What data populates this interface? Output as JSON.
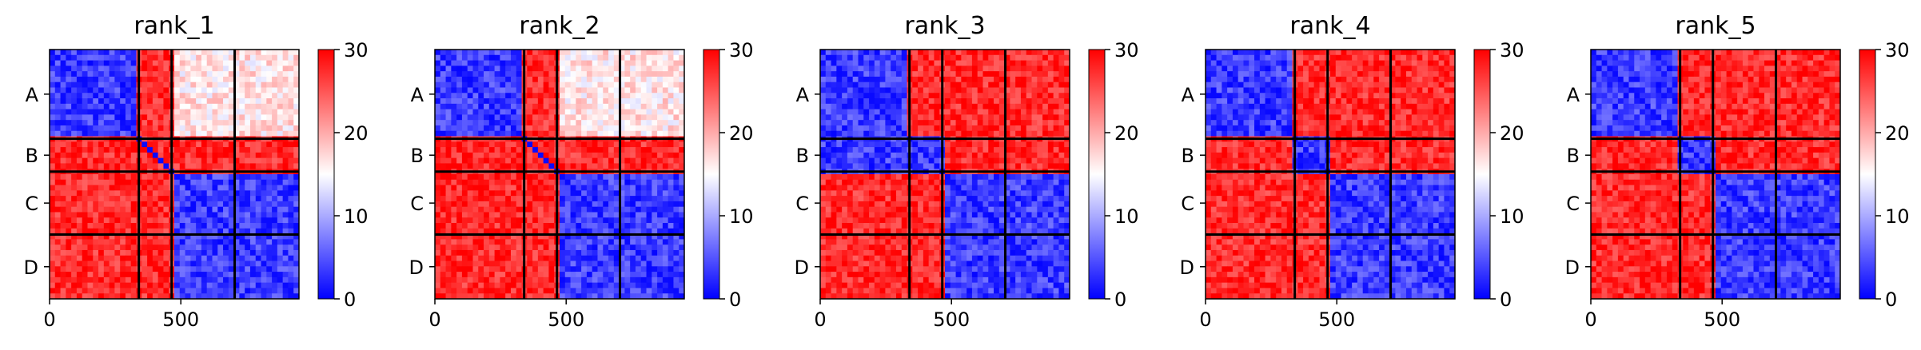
{
  "chart_data": [
    {
      "type": "heatmap",
      "title": "rank_1",
      "row_labels": [
        "A",
        "B",
        "C",
        "D"
      ],
      "x_ticks": [
        0,
        500
      ],
      "colorbar": {
        "min": 0,
        "max": 30,
        "ticks": [
          0,
          10,
          20,
          30
        ]
      },
      "chains": [
        {
          "name": "A",
          "length": 340
        },
        {
          "name": "B",
          "length": 125
        },
        {
          "name": "C",
          "length": 240
        },
        {
          "name": "D",
          "length": 245
        }
      ],
      "block_pattern": [
        [
          "low",
          "high",
          "mid",
          "mid"
        ],
        [
          "high",
          "high",
          "high",
          "high"
        ],
        [
          "high",
          "high",
          "low",
          "low"
        ],
        [
          "high",
          "high",
          "low",
          "low"
        ]
      ]
    },
    {
      "type": "heatmap",
      "title": "rank_2",
      "row_labels": [
        "A",
        "B",
        "C",
        "D"
      ],
      "x_ticks": [
        0,
        500
      ],
      "colorbar": {
        "min": 0,
        "max": 30,
        "ticks": [
          0,
          10,
          20,
          30
        ]
      },
      "chains": [
        {
          "name": "A",
          "length": 340
        },
        {
          "name": "B",
          "length": 125
        },
        {
          "name": "C",
          "length": 240
        },
        {
          "name": "D",
          "length": 245
        }
      ],
      "block_pattern": [
        [
          "low",
          "high",
          "mid",
          "mid"
        ],
        [
          "high",
          "high",
          "high",
          "high"
        ],
        [
          "high",
          "high",
          "low",
          "low"
        ],
        [
          "high",
          "high",
          "low",
          "low"
        ]
      ]
    },
    {
      "type": "heatmap",
      "title": "rank_3",
      "row_labels": [
        "A",
        "B",
        "C",
        "D"
      ],
      "x_ticks": [
        0,
        500
      ],
      "colorbar": {
        "min": 0,
        "max": 30,
        "ticks": [
          0,
          10,
          20,
          30
        ]
      },
      "chains": [
        {
          "name": "A",
          "length": 340
        },
        {
          "name": "B",
          "length": 125
        },
        {
          "name": "C",
          "length": 240
        },
        {
          "name": "D",
          "length": 245
        }
      ],
      "block_pattern": [
        [
          "low",
          "high",
          "high",
          "high"
        ],
        [
          "low",
          "low",
          "high",
          "high"
        ],
        [
          "high",
          "high",
          "low",
          "low"
        ],
        [
          "high",
          "high",
          "low",
          "low"
        ]
      ]
    },
    {
      "type": "heatmap",
      "title": "rank_4",
      "row_labels": [
        "A",
        "B",
        "C",
        "D"
      ],
      "x_ticks": [
        0,
        500
      ],
      "colorbar": {
        "min": 0,
        "max": 30,
        "ticks": [
          0,
          10,
          20,
          30
        ]
      },
      "chains": [
        {
          "name": "A",
          "length": 340
        },
        {
          "name": "B",
          "length": 125
        },
        {
          "name": "C",
          "length": 240
        },
        {
          "name": "D",
          "length": 245
        }
      ],
      "block_pattern": [
        [
          "low",
          "high",
          "high",
          "high"
        ],
        [
          "high",
          "low",
          "high",
          "high"
        ],
        [
          "high",
          "high",
          "low",
          "low"
        ],
        [
          "high",
          "high",
          "low",
          "low"
        ]
      ]
    },
    {
      "type": "heatmap",
      "title": "rank_5",
      "row_labels": [
        "A",
        "B",
        "C",
        "D"
      ],
      "x_ticks": [
        0,
        500
      ],
      "colorbar": {
        "min": 0,
        "max": 30,
        "ticks": [
          0,
          10,
          20,
          30
        ]
      },
      "chains": [
        {
          "name": "A",
          "length": 340
        },
        {
          "name": "B",
          "length": 125
        },
        {
          "name": "C",
          "length": 240
        },
        {
          "name": "D",
          "length": 245
        }
      ],
      "block_pattern": [
        [
          "low",
          "high",
          "high",
          "high"
        ],
        [
          "high",
          "low",
          "high",
          "high"
        ],
        [
          "high",
          "high",
          "low",
          "low"
        ],
        [
          "high",
          "high",
          "low",
          "low"
        ]
      ]
    }
  ],
  "colors": {
    "low": "#0000ff",
    "mid": "#ffffff",
    "high": "#ff0000",
    "boundary": "#000000"
  }
}
